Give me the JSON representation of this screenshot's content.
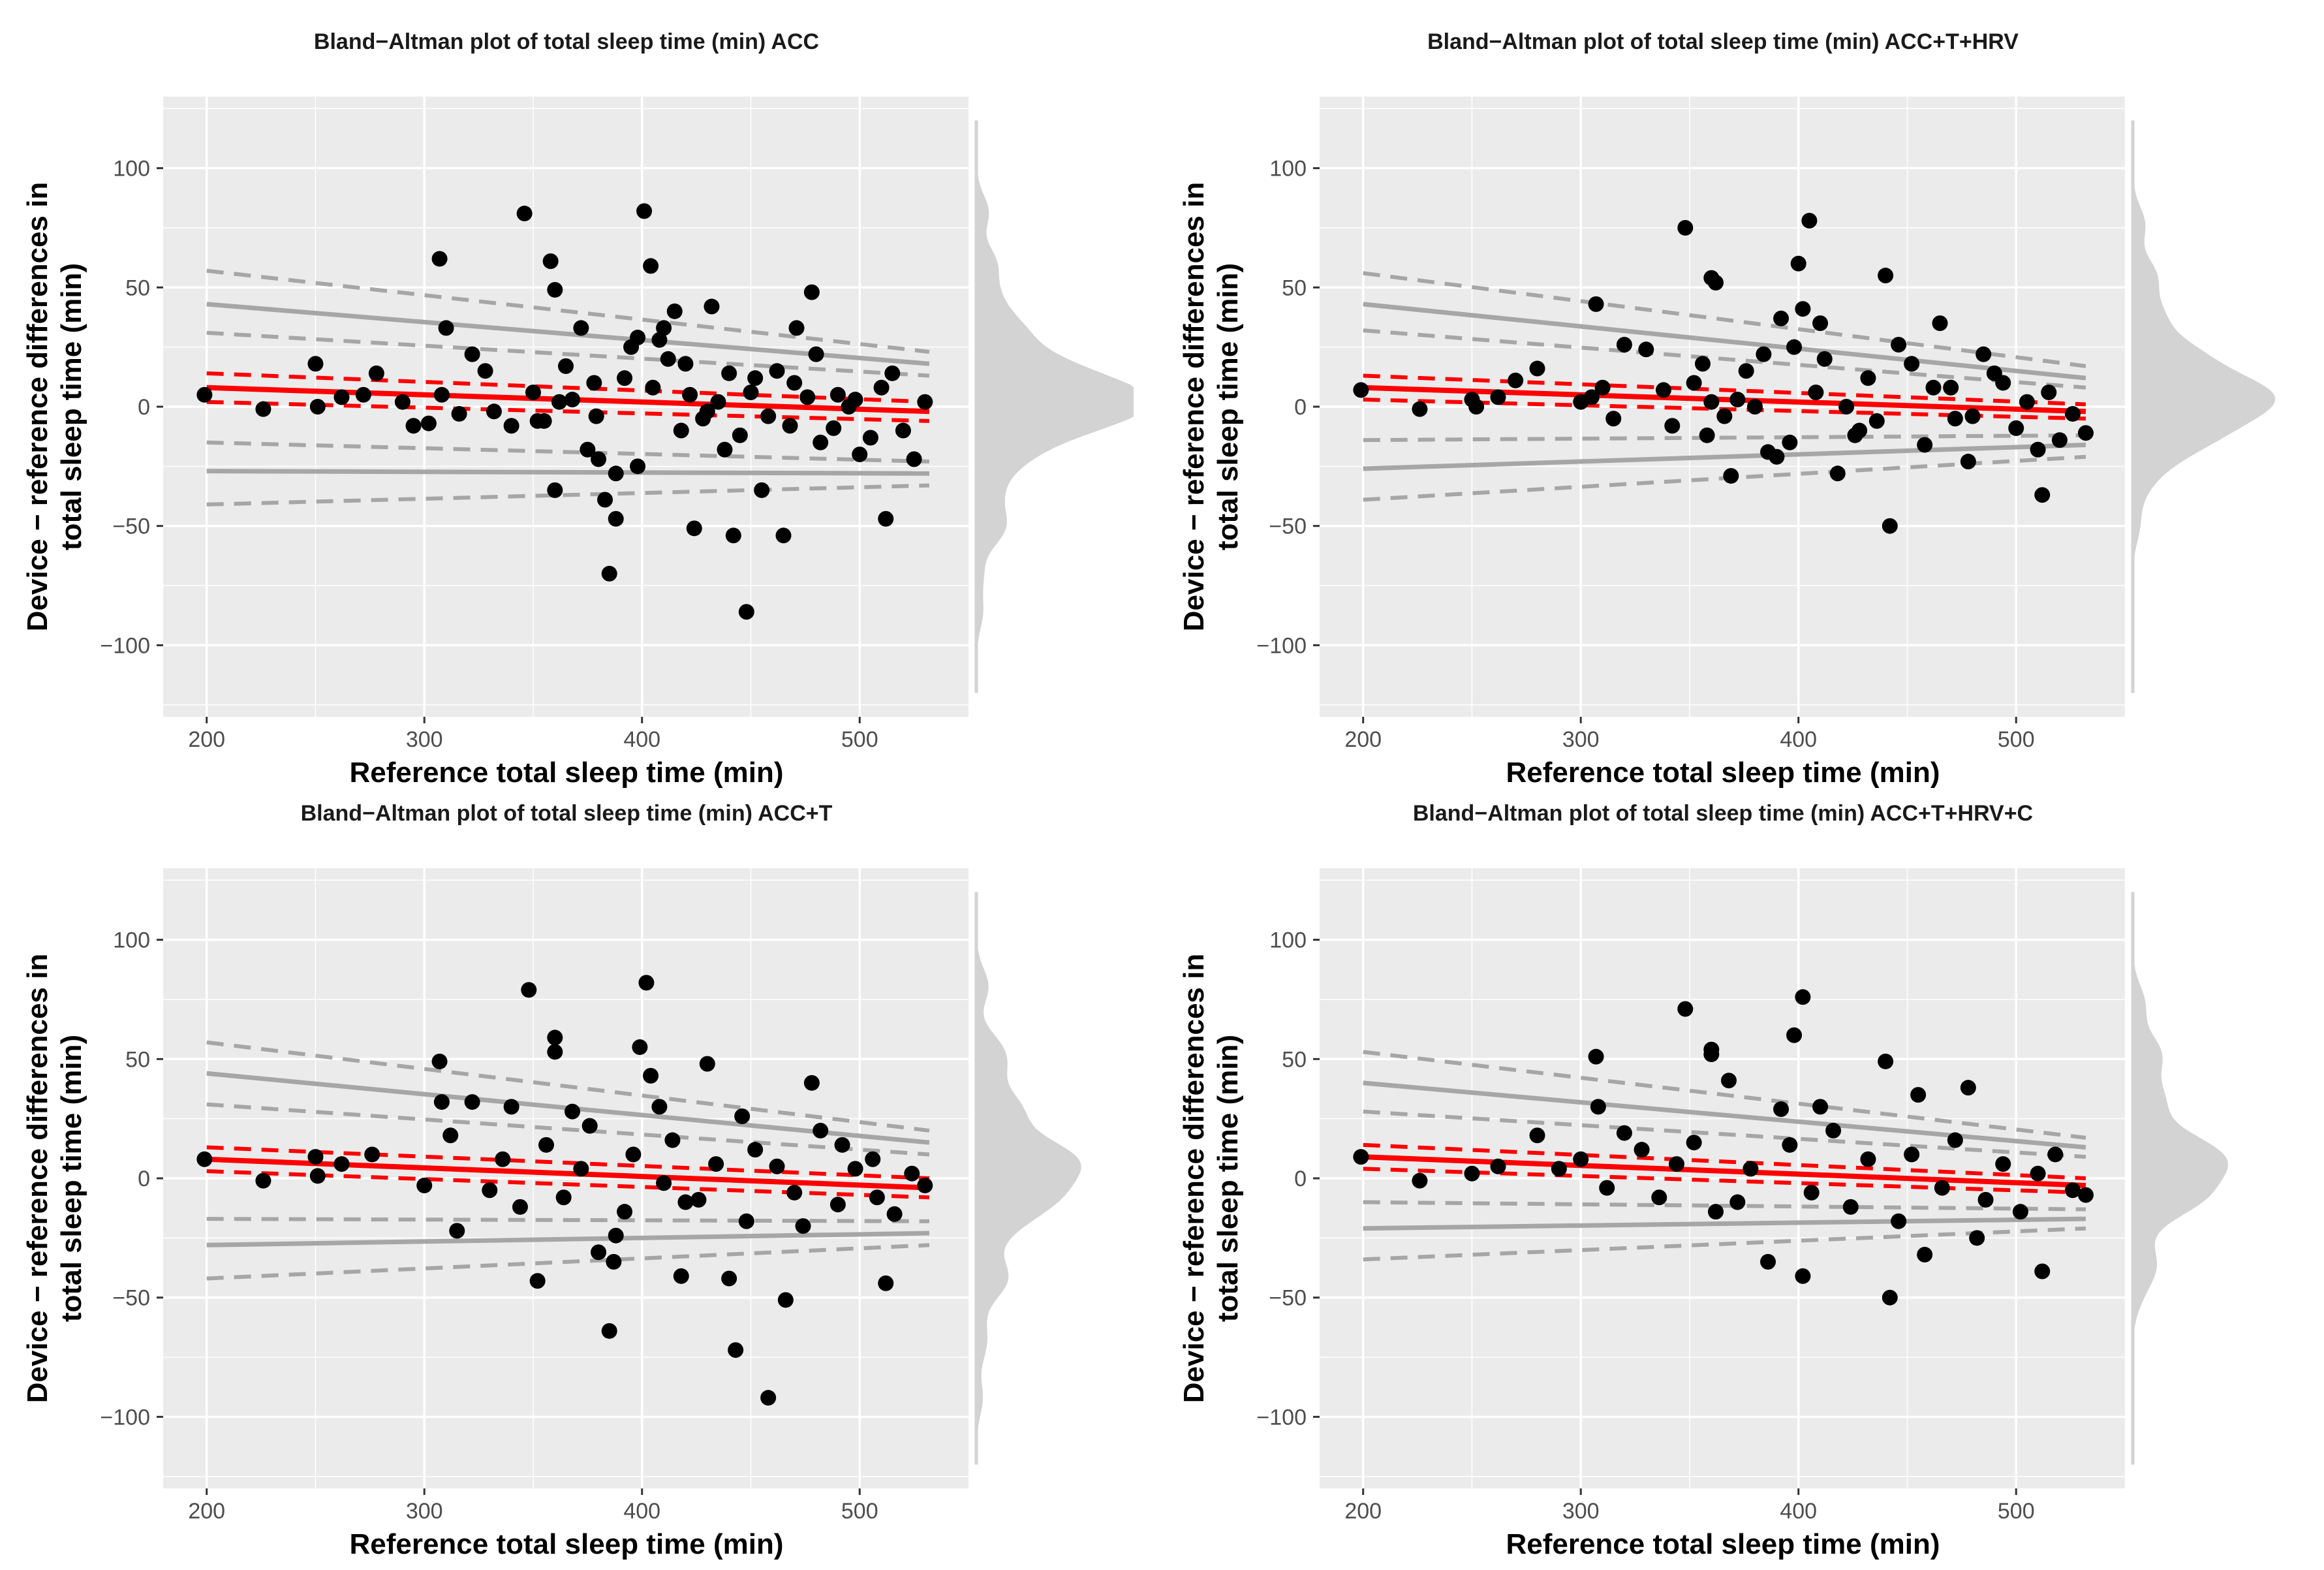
{
  "figure": {
    "colors": {
      "panel_bg": "#EBEBEB",
      "grid": "#FFFFFF",
      "points": "#000000",
      "bias": "#FF0000",
      "loa": "#A6A6A6",
      "density": "#D3D3D3"
    }
  },
  "chart_data": [
    {
      "type": "scatter",
      "title": "Bland−Altman plot of total sleep time (min) ACC",
      "xlabel": "Reference total sleep time (min)",
      "ylabel_line1": "Device − reference differences in",
      "ylabel_line2": "total sleep time (min)",
      "xlim": [
        180,
        550
      ],
      "ylim": [
        -130,
        130
      ],
      "xticks": [
        200,
        300,
        400,
        500
      ],
      "yticks": [
        100,
        50,
        0,
        -50,
        -100
      ],
      "xtick_labels": [
        "200",
        "300",
        "400",
        "500"
      ],
      "ytick_labels": [
        "100",
        "50",
        "0",
        "−50",
        "−100"
      ],
      "bias_line": {
        "x": [
          200,
          532
        ],
        "y": [
          8,
          -2
        ]
      },
      "bias_ci_upper": {
        "x": [
          200,
          532
        ],
        "y": [
          14,
          2
        ]
      },
      "bias_ci_lower": {
        "x": [
          200,
          532
        ],
        "y": [
          2,
          -6
        ]
      },
      "upper_loa": {
        "x": [
          200,
          532
        ],
        "y": [
          43,
          18
        ]
      },
      "upper_loa_ci_upper": {
        "x": [
          200,
          532
        ],
        "y": [
          57,
          23
        ]
      },
      "upper_loa_ci_lower": {
        "x": [
          200,
          532
        ],
        "y": [
          31,
          13
        ]
      },
      "lower_loa": {
        "x": [
          200,
          532
        ],
        "y": [
          -27,
          -28
        ]
      },
      "lower_loa_ci_upper": {
        "x": [
          200,
          532
        ],
        "y": [
          -15,
          -23
        ]
      },
      "lower_loa_ci_lower": {
        "x": [
          200,
          532
        ],
        "y": [
          -41,
          -33
        ]
      },
      "points": {
        "x": [
          199,
          226,
          250,
          251,
          262,
          272,
          278,
          302,
          307,
          308,
          310,
          346,
          358,
          360,
          360,
          365,
          372,
          379,
          380,
          383,
          385,
          388,
          398,
          401,
          404,
          410,
          415,
          424,
          432,
          442,
          448,
          455,
          465,
          471,
          478,
          512,
          316,
          322,
          290,
          328,
          295,
          332,
          340,
          350,
          355,
          368,
          375,
          392,
          395,
          405,
          418,
          420,
          428,
          435,
          440,
          445,
          450,
          458,
          470,
          482,
          490,
          500,
          510,
          520,
          530,
          378,
          388,
          412,
          430,
          462,
          468,
          480,
          495,
          505,
          515,
          525,
          352,
          362,
          398,
          408,
          422,
          438,
          452,
          476,
          488,
          498
        ],
        "y": [
          5,
          -1,
          18,
          0,
          4,
          5,
          14,
          -7,
          62,
          5,
          33,
          81,
          61,
          49,
          -35,
          17,
          33,
          -4,
          -22,
          -39,
          -70,
          -47,
          29,
          82,
          59,
          33,
          40,
          -51,
          42,
          -54,
          -86,
          -35,
          -54,
          33,
          48,
          -47,
          -3,
          22,
          2,
          15,
          -8,
          -2,
          -8,
          6,
          -6,
          3,
          -18,
          12,
          25,
          8,
          -10,
          18,
          -5,
          2,
          14,
          -12,
          6,
          -4,
          10,
          -15,
          5,
          -20,
          8,
          -10,
          2,
          10,
          -28,
          20,
          -2,
          15,
          -8,
          22,
          0,
          -13,
          14,
          -22,
          -6,
          2,
          -25,
          28,
          5,
          -18,
          12,
          4,
          -9,
          3
        ]
      },
      "density_side": "right"
    },
    {
      "type": "scatter",
      "title": "Bland−Altman plot of total sleep time (min) ACC+T+HRV",
      "xlabel": "Reference total sleep time (min)",
      "ylabel_line1": "Device − reference differences in",
      "ylabel_line2": "total sleep time (min)",
      "xlim": [
        180,
        550
      ],
      "ylim": [
        -130,
        130
      ],
      "xticks": [
        200,
        300,
        400,
        500
      ],
      "yticks": [
        100,
        50,
        0,
        -50,
        -100
      ],
      "xtick_labels": [
        "200",
        "300",
        "400",
        "500"
      ],
      "ytick_labels": [
        "100",
        "50",
        "0",
        "−50",
        "−100"
      ],
      "bias_line": {
        "x": [
          200,
          532
        ],
        "y": [
          8,
          -2
        ]
      },
      "bias_ci_upper": {
        "x": [
          200,
          532
        ],
        "y": [
          13,
          1
        ]
      },
      "bias_ci_lower": {
        "x": [
          200,
          532
        ],
        "y": [
          3,
          -5
        ]
      },
      "upper_loa": {
        "x": [
          200,
          532
        ],
        "y": [
          43,
          12
        ]
      },
      "upper_loa_ci_upper": {
        "x": [
          200,
          532
        ],
        "y": [
          56,
          17
        ]
      },
      "upper_loa_ci_lower": {
        "x": [
          200,
          532
        ],
        "y": [
          32,
          8
        ]
      },
      "lower_loa": {
        "x": [
          200,
          532
        ],
        "y": [
          -26,
          -16
        ]
      },
      "lower_loa_ci_upper": {
        "x": [
          200,
          532
        ],
        "y": [
          -14,
          -12
        ]
      },
      "lower_loa_ci_lower": {
        "x": [
          200,
          532
        ],
        "y": [
          -39,
          -21
        ]
      },
      "points": {
        "x": [
          199,
          226,
          250,
          252,
          262,
          270,
          280,
          305,
          307,
          320,
          330,
          348,
          360,
          362,
          369,
          360,
          380,
          386,
          392,
          398,
          400,
          402,
          405,
          410,
          418,
          440,
          442,
          465,
          478,
          485,
          512,
          532,
          300,
          310,
          315,
          338,
          342,
          352,
          358,
          372,
          376,
          396,
          412,
          422,
          428,
          432,
          436,
          452,
          458,
          470,
          480,
          490,
          500,
          505,
          515,
          520,
          526,
          356,
          366,
          384,
          390,
          408,
          426,
          446,
          462,
          472,
          494,
          510
        ],
        "y": [
          7,
          -1,
          3,
          0,
          4,
          11,
          16,
          4,
          43,
          26,
          24,
          75,
          54,
          52,
          -29,
          2,
          0,
          -19,
          37,
          25,
          60,
          41,
          78,
          35,
          -28,
          55,
          -50,
          35,
          -23,
          22,
          -37,
          -11,
          2,
          8,
          -5,
          7,
          -8,
          10,
          -12,
          3,
          15,
          -15,
          20,
          0,
          -10,
          12,
          -6,
          18,
          -16,
          8,
          -4,
          14,
          -9,
          2,
          6,
          -14,
          -3,
          18,
          -4,
          22,
          -21,
          6,
          -12,
          26,
          8,
          -5,
          10,
          -18
        ]
      },
      "density_side": "right"
    },
    {
      "type": "scatter",
      "title": "Bland−Altman plot of total sleep time (min) ACC+T",
      "xlabel": "Reference total sleep time (min)",
      "ylabel_line1": "Device − reference differences in",
      "ylabel_line2": "total sleep time (min)",
      "xlim": [
        180,
        550
      ],
      "ylim": [
        -130,
        130
      ],
      "xticks": [
        200,
        300,
        400,
        500
      ],
      "yticks": [
        100,
        50,
        0,
        -50,
        -100
      ],
      "xtick_labels": [
        "200",
        "300",
        "400",
        "500"
      ],
      "ytick_labels": [
        "100",
        "50",
        "0",
        "−50",
        "−100"
      ],
      "bias_line": {
        "x": [
          200,
          532
        ],
        "y": [
          8,
          -4
        ]
      },
      "bias_ci_upper": {
        "x": [
          200,
          532
        ],
        "y": [
          13,
          0
        ]
      },
      "bias_ci_lower": {
        "x": [
          200,
          532
        ],
        "y": [
          3,
          -8
        ]
      },
      "upper_loa": {
        "x": [
          200,
          532
        ],
        "y": [
          44,
          15
        ]
      },
      "upper_loa_ci_upper": {
        "x": [
          200,
          532
        ],
        "y": [
          57,
          20
        ]
      },
      "upper_loa_ci_lower": {
        "x": [
          200,
          532
        ],
        "y": [
          31,
          10
        ]
      },
      "lower_loa": {
        "x": [
          200,
          532
        ],
        "y": [
          -28,
          -23
        ]
      },
      "lower_loa_ci_upper": {
        "x": [
          200,
          532
        ],
        "y": [
          -17,
          -18
        ]
      },
      "lower_loa_ci_lower": {
        "x": [
          200,
          532
        ],
        "y": [
          -42,
          -28
        ]
      },
      "points": {
        "x": [
          199,
          226,
          250,
          251,
          262,
          276,
          307,
          308,
          315,
          322,
          340,
          348,
          352,
          360,
          360,
          368,
          380,
          385,
          387,
          399,
          402,
          404,
          418,
          430,
          440,
          443,
          458,
          466,
          478,
          512,
          300,
          312,
          330,
          336,
          344,
          356,
          364,
          372,
          376,
          392,
          396,
          410,
          414,
          426,
          434,
          448,
          452,
          470,
          482,
          490,
          498,
          506,
          516,
          524,
          530,
          388,
          408,
          420,
          446,
          462,
          474,
          492,
          508
        ],
        "y": [
          8,
          -1,
          9,
          1,
          6,
          10,
          49,
          32,
          -22,
          32,
          30,
          79,
          -43,
          53,
          59,
          28,
          -31,
          -64,
          -35,
          55,
          82,
          43,
          -41,
          48,
          -42,
          -72,
          -92,
          -51,
          40,
          -44,
          -3,
          18,
          -5,
          8,
          -12,
          14,
          -8,
          4,
          22,
          -14,
          10,
          -2,
          16,
          -9,
          6,
          -18,
          12,
          -6,
          20,
          -11,
          4,
          8,
          -15,
          2,
          -3,
          -24,
          30,
          -10,
          26,
          5,
          -20,
          14,
          -8
        ]
      },
      "density_side": "right"
    },
    {
      "type": "scatter",
      "title": "Bland−Altman plot of total sleep time (min) ACC+T+HRV+C",
      "xlabel": "Reference total sleep time (min)",
      "ylabel_line1": "Device − reference differences in",
      "ylabel_line2": "total sleep time (min)",
      "xlim": [
        180,
        550
      ],
      "ylim": [
        -130,
        130
      ],
      "xticks": [
        200,
        300,
        400,
        500
      ],
      "yticks": [
        100,
        50,
        0,
        -50,
        -100
      ],
      "xtick_labels": [
        "200",
        "300",
        "400",
        "500"
      ],
      "ytick_labels": [
        "100",
        "50",
        "0",
        "−50",
        "−100"
      ],
      "bias_line": {
        "x": [
          200,
          532
        ],
        "y": [
          9,
          -3
        ]
      },
      "bias_ci_upper": {
        "x": [
          200,
          532
        ],
        "y": [
          14,
          0
        ]
      },
      "bias_ci_lower": {
        "x": [
          200,
          532
        ],
        "y": [
          4,
          -6
        ]
      },
      "upper_loa": {
        "x": [
          200,
          532
        ],
        "y": [
          40,
          13
        ]
      },
      "upper_loa_ci_upper": {
        "x": [
          200,
          532
        ],
        "y": [
          53,
          17
        ]
      },
      "upper_loa_ci_lower": {
        "x": [
          200,
          532
        ],
        "y": [
          28,
          9
        ]
      },
      "lower_loa": {
        "x": [
          200,
          532
        ],
        "y": [
          -21,
          -17
        ]
      },
      "lower_loa_ci_upper": {
        "x": [
          200,
          532
        ],
        "y": [
          -10,
          -13
        ]
      },
      "lower_loa_ci_lower": {
        "x": [
          200,
          532
        ],
        "y": [
          -34,
          -21
        ]
      },
      "points": {
        "x": [
          199,
          226,
          250,
          262,
          280,
          307,
          308,
          320,
          348,
          360,
          360,
          362,
          368,
          386,
          392,
          398,
          402,
          402,
          410,
          440,
          442,
          455,
          458,
          478,
          482,
          512,
          290,
          300,
          312,
          328,
          336,
          344,
          352,
          372,
          378,
          396,
          406,
          416,
          424,
          432,
          446,
          452,
          466,
          472,
          486,
          494,
          502,
          510,
          518,
          526,
          532
        ],
        "y": [
          9,
          -1,
          2,
          5,
          18,
          51,
          30,
          19,
          71,
          52,
          54,
          -14,
          41,
          -35,
          29,
          60,
          76,
          -41,
          30,
          49,
          -50,
          35,
          -32,
          38,
          -25,
          -39,
          4,
          8,
          -4,
          12,
          -8,
          6,
          15,
          -10,
          4,
          14,
          -6,
          20,
          -12,
          8,
          -18,
          10,
          -4,
          16,
          -9,
          6,
          -14,
          2,
          10,
          -5,
          -7
        ]
      },
      "density_side": "right"
    }
  ]
}
